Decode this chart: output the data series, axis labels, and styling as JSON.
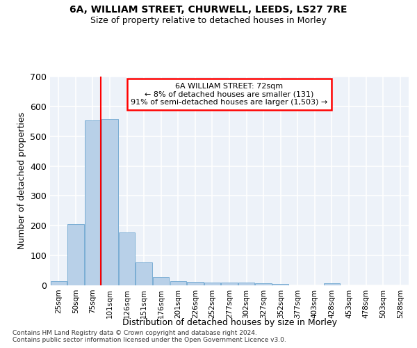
{
  "title1": "6A, WILLIAM STREET, CHURWELL, LEEDS, LS27 7RE",
  "title2": "Size of property relative to detached houses in Morley",
  "xlabel": "Distribution of detached houses by size in Morley",
  "ylabel": "Number of detached properties",
  "bar_color": "#b8d0e8",
  "bar_edge_color": "#7aadd4",
  "background_color": "#edf2f9",
  "grid_color": "#ffffff",
  "categories": [
    "25sqm",
    "50sqm",
    "75sqm",
    "101sqm",
    "126sqm",
    "151sqm",
    "176sqm",
    "201sqm",
    "226sqm",
    "252sqm",
    "277sqm",
    "302sqm",
    "327sqm",
    "352sqm",
    "377sqm",
    "403sqm",
    "428sqm",
    "453sqm",
    "478sqm",
    "503sqm",
    "528sqm"
  ],
  "values": [
    13,
    205,
    553,
    558,
    178,
    78,
    29,
    13,
    12,
    9,
    10,
    10,
    7,
    5,
    0,
    0,
    6,
    0,
    0,
    0,
    0
  ],
  "ylim": [
    0,
    700
  ],
  "yticks": [
    0,
    100,
    200,
    300,
    400,
    500,
    600,
    700
  ],
  "property_label": "6A WILLIAM STREET: 72sqm",
  "pct_smaller": "8%",
  "n_smaller": 131,
  "pct_larger_semi": "91%",
  "n_larger_semi": 1503,
  "red_line_x": 2.47,
  "footer1": "Contains HM Land Registry data © Crown copyright and database right 2024.",
  "footer2": "Contains public sector information licensed under the Open Government Licence v3.0."
}
